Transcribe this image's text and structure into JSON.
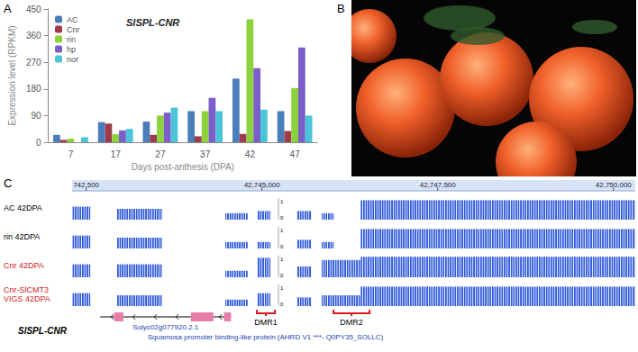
{
  "panel_labels": [
    "A",
    "B",
    "C"
  ],
  "chart_data": {
    "type": "bar",
    "title": "SlSPL-CNR",
    "x_label": "Days post-anthesis (DPA)",
    "y_label": "Expression level (RPKM)",
    "categories": [
      "7",
      "17",
      "27",
      "37",
      "42",
      "47"
    ],
    "series": [
      {
        "name": "AC",
        "color": "#4a7ebb",
        "values": [
          25,
          68,
          70,
          105,
          215,
          105
        ]
      },
      {
        "name": "Cnr",
        "color": "#a03b4c",
        "values": [
          8,
          63,
          25,
          20,
          28,
          38
        ]
      },
      {
        "name": "rin",
        "color": "#8cd23c",
        "values": [
          12,
          27,
          90,
          105,
          415,
          183
        ]
      },
      {
        "name": "hp",
        "color": "#7b5ec8",
        "values": [
          null,
          40,
          100,
          150,
          250,
          320
        ]
      },
      {
        "name": "nor",
        "color": "#4cc4d8",
        "values": [
          17,
          45,
          117,
          105,
          110,
          90
        ]
      }
    ],
    "ylim": [
      0,
      450
    ],
    "yticks": [
      0,
      90,
      180,
      270,
      360,
      450
    ],
    "grid": false,
    "legend": "top-left"
  },
  "browser": {
    "range": [
      42742300,
      42750310
    ],
    "ruler_ticks": [
      {
        "value": 42742500,
        "label": "742,500"
      },
      {
        "value": 42745000,
        "label": "42,745,000"
      },
      {
        "value": 42747500,
        "label": "42,747,500"
      },
      {
        "value": 42750000,
        "label": "42,750,000"
      }
    ],
    "scale": {
      "max": 1,
      "min": 0
    },
    "tracks": [
      {
        "label_lines": [
          "AC 42DPA"
        ],
        "color": "#000000",
        "segments": [
          [
            42742300,
            42742560,
            0.6
          ],
          [
            42742940,
            42743580,
            0.5
          ],
          [
            42744480,
            42744800,
            0.3
          ],
          [
            42744930,
            42745120,
            0.4
          ],
          [
            42745500,
            42745700,
            0.4
          ],
          [
            42745850,
            42746020,
            0.3
          ],
          [
            42746400,
            42750310,
            0.9
          ]
        ]
      },
      {
        "label_lines": [
          "rin 42DPA"
        ],
        "color": "#000000",
        "segments": [
          [
            42742300,
            42742560,
            0.6
          ],
          [
            42742940,
            42743580,
            0.5
          ],
          [
            42744480,
            42744800,
            0.3
          ],
          [
            42744930,
            42745120,
            0.3
          ],
          [
            42745500,
            42745700,
            0.4
          ],
          [
            42745850,
            42746020,
            0.3
          ],
          [
            42746400,
            42750310,
            0.9
          ]
        ]
      },
      {
        "label_lines": [
          "Cnr 42DPA"
        ],
        "color": "#d7191c",
        "segments": [
          [
            42742300,
            42742560,
            0.6
          ],
          [
            42742940,
            42743580,
            0.6
          ],
          [
            42744480,
            42744800,
            0.3
          ],
          [
            42744930,
            42745120,
            0.9
          ],
          [
            42745500,
            42745700,
            0.5
          ],
          [
            42745850,
            42746400,
            0.8
          ],
          [
            42746400,
            42750310,
            0.95
          ]
        ]
      },
      {
        "label_lines": [
          "Cnr-SlCMT3",
          "VIGS 42DPA"
        ],
        "color": "#d7191c",
        "segments": [
          [
            42742300,
            42742560,
            0.6
          ],
          [
            42742940,
            42743580,
            0.5
          ],
          [
            42744480,
            42744800,
            0.3
          ],
          [
            42744930,
            42745120,
            0.6
          ],
          [
            42745500,
            42745700,
            0.4
          ],
          [
            42745850,
            42746400,
            0.5
          ],
          [
            42746400,
            42750310,
            0.9
          ]
        ]
      }
    ],
    "dmrs": [
      {
        "label": "DMR1",
        "start": 42744928,
        "end": 42745185
      },
      {
        "label": "DMR2",
        "start": 42746018,
        "end": 42746531
      }
    ],
    "gene": {
      "label": "SlSPL-CNR",
      "id": "Solyc02g077920.2.1",
      "description": "Squamosa promoter binding-like protein (AHRD V1 ***- Q0PY35_SOLLC)",
      "strand": "-",
      "start": 42742700,
      "end": 42744560,
      "exons": [
        [
          42742900,
          42743030
        ],
        [
          42743990,
          42744310
        ],
        [
          42744460,
          42744560
        ]
      ]
    }
  }
}
